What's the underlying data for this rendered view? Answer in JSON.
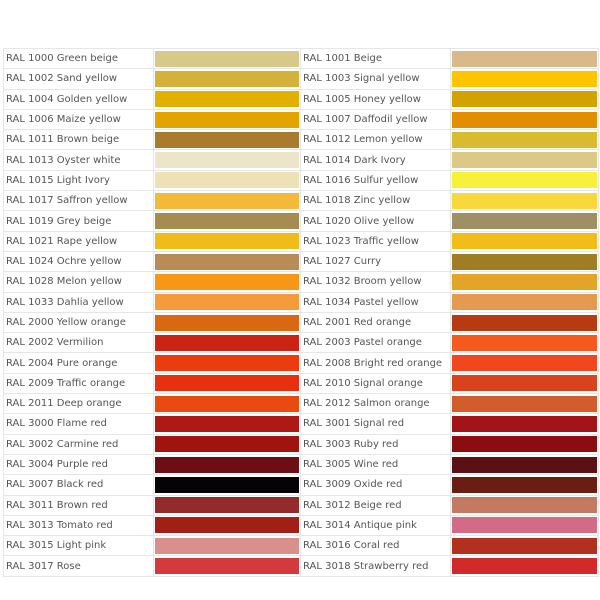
{
  "table": {
    "rows": [
      [
        {
          "label": "RAL 1000 Green beige",
          "color": "#d6c98a"
        },
        {
          "label": "RAL 1001 Beige",
          "color": "#d9b98a"
        }
      ],
      [
        {
          "label": "RAL 1002 Sand yellow",
          "color": "#d4b23a"
        },
        {
          "label": "RAL 1003 Signal yellow",
          "color": "#fdc500"
        }
      ],
      [
        {
          "label": "RAL 1004 Golden yellow",
          "color": "#e2b000"
        },
        {
          "label": "RAL 1005 Honey yellow",
          "color": "#d2a200"
        }
      ],
      [
        {
          "label": "RAL 1006 Maize yellow",
          "color": "#e4a400"
        },
        {
          "label": "RAL 1007 Daffodil yellow",
          "color": "#e38d00"
        }
      ],
      [
        {
          "label": "RAL 1011 Brown beige",
          "color": "#a97b2f"
        },
        {
          "label": "RAL 1012 Lemon yellow",
          "color": "#d9bb2f"
        }
      ],
      [
        {
          "label": "RAL 1013 Oyster white",
          "color": "#ece5c9"
        },
        {
          "label": "RAL 1014 Dark Ivory",
          "color": "#dcc985"
        }
      ],
      [
        {
          "label": "RAL 1015 Light Ivory",
          "color": "#ede2b6"
        },
        {
          "label": "RAL 1016 Sulfur yellow",
          "color": "#f7f13c"
        }
      ],
      [
        {
          "label": "RAL 1017 Saffron yellow",
          "color": "#f4b93a"
        },
        {
          "label": "RAL 1018 Zinc yellow",
          "color": "#f9d83e"
        }
      ],
      [
        {
          "label": "RAL 1019 Grey beige",
          "color": "#a58d52"
        },
        {
          "label": "RAL 1020 Olive yellow",
          "color": "#9e9064"
        }
      ],
      [
        {
          "label": "RAL 1021 Rape yellow",
          "color": "#f1bb1a"
        },
        {
          "label": "RAL 1023 Traffic yellow",
          "color": "#f2bd19"
        }
      ],
      [
        {
          "label": "RAL 1024 Ochre yellow",
          "color": "#b88c56"
        },
        {
          "label": "RAL 1027 Curry",
          "color": "#9f7d24"
        }
      ],
      [
        {
          "label": "RAL 1028 Melon yellow",
          "color": "#f69718"
        },
        {
          "label": "RAL 1032 Broom yellow",
          "color": "#e3a429"
        }
      ],
      [
        {
          "label": "RAL 1033 Dahlia yellow",
          "color": "#f49b3c"
        },
        {
          "label": "RAL 1034 Pastel yellow",
          "color": "#e59a52"
        }
      ],
      [
        {
          "label": "RAL 2000 Yellow orange",
          "color": "#da6810"
        },
        {
          "label": "RAL 2001 Red orange",
          "color": "#b83a12"
        }
      ],
      [
        {
          "label": "RAL 2002 Vermilion",
          "color": "#cb2414"
        },
        {
          "label": "RAL 2003 Pastel orange",
          "color": "#f6591e"
        }
      ],
      [
        {
          "label": "RAL 2004 Pure orange",
          "color": "#ed3b10"
        },
        {
          "label": "RAL 2008 Bright red orange",
          "color": "#f1471f"
        }
      ],
      [
        {
          "label": "RAL 2009 Traffic orange",
          "color": "#e63010"
        },
        {
          "label": "RAL 2010 Signal orange",
          "color": "#d8421d"
        }
      ],
      [
        {
          "label": "RAL 2011 Deep orange",
          "color": "#ea4a10"
        },
        {
          "label": "RAL 2012 Salmon orange",
          "color": "#d25c2c"
        }
      ],
      [
        {
          "label": "RAL 3000 Flame red",
          "color": "#ad1a16"
        },
        {
          "label": "RAL 3001 Signal red",
          "color": "#a21417"
        }
      ],
      [
        {
          "label": "RAL 3002 Carmine red",
          "color": "#a0140f"
        },
        {
          "label": "RAL 3003 Ruby red",
          "color": "#8a0d10"
        }
      ],
      [
        {
          "label": "RAL 3004 Purple red",
          "color": "#6d0e14"
        },
        {
          "label": "RAL 3005 Wine red",
          "color": "#5d0f16"
        }
      ],
      [
        {
          "label": "RAL 3007 Black red",
          "color": "#050305"
        },
        {
          "label": "RAL 3009 Oxide red",
          "color": "#6a1e13"
        }
      ],
      [
        {
          "label": "RAL 3011 Brown red",
          "color": "#952a2a"
        },
        {
          "label": "RAL 3012 Beige red",
          "color": "#c47a61"
        }
      ],
      [
        {
          "label": "RAL 3013 Tomato red",
          "color": "#a11f16"
        },
        {
          "label": "RAL 3014 Antique pink",
          "color": "#d36b87"
        }
      ],
      [
        {
          "label": "RAL 3015 Light pink",
          "color": "#d9908d"
        },
        {
          "label": "RAL 3016 Coral red",
          "color": "#b1301f"
        }
      ],
      [
        {
          "label": "RAL 3017 Rose",
          "color": "#d23a3d"
        },
        {
          "label": "RAL 3018 Strawberry red",
          "color": "#d12a2a"
        }
      ]
    ]
  }
}
